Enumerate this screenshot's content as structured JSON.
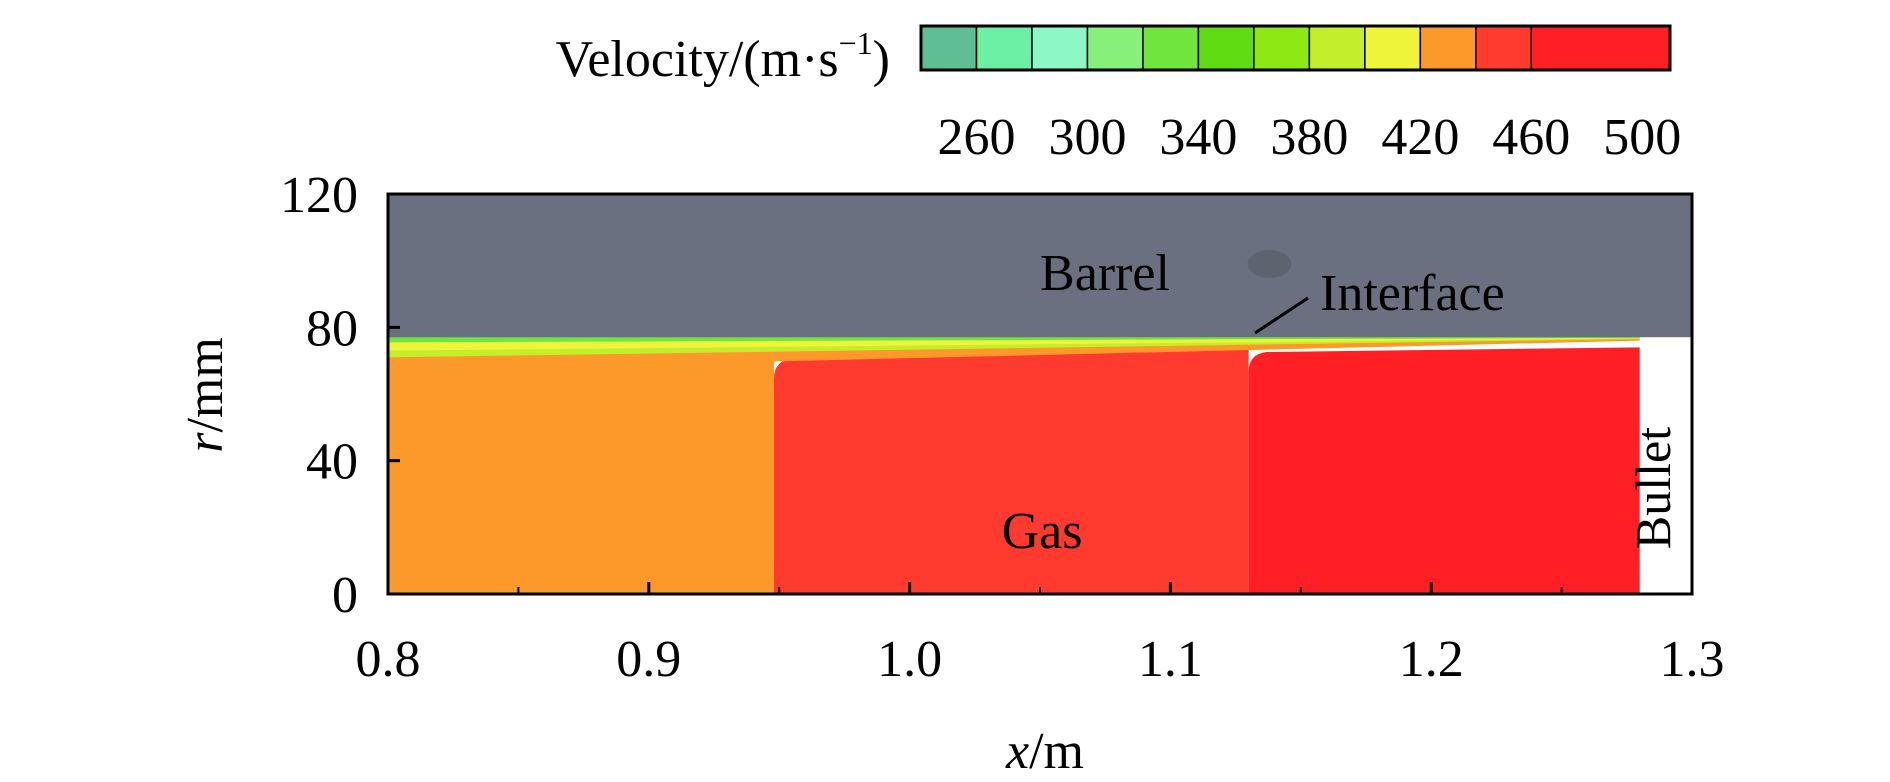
{
  "chart_data": {
    "type": "heatmap",
    "colorbar": {
      "label_main": "Velocity/(m·s",
      "label_sup": "−1",
      "label_close": ")",
      "tick_labels": [
        "260",
        "300",
        "340",
        "380",
        "420",
        "460",
        "500"
      ],
      "ticks": [
        260,
        300,
        340,
        380,
        420,
        460,
        500
      ],
      "range": [
        240,
        510
      ],
      "bins": [
        {
          "lo": 240,
          "hi": 260,
          "color": "#5fbe93"
        },
        {
          "lo": 260,
          "hi": 280,
          "color": "#6bf0a6"
        },
        {
          "lo": 280,
          "hi": 300,
          "color": "#8cf8c5"
        },
        {
          "lo": 300,
          "hi": 320,
          "color": "#86f07a"
        },
        {
          "lo": 320,
          "hi": 340,
          "color": "#6fe53d"
        },
        {
          "lo": 340,
          "hi": 360,
          "color": "#5fdc12"
        },
        {
          "lo": 360,
          "hi": 380,
          "color": "#8ee814"
        },
        {
          "lo": 380,
          "hi": 400,
          "color": "#c2ee2c"
        },
        {
          "lo": 400,
          "hi": 420,
          "color": "#eef43a"
        },
        {
          "lo": 420,
          "hi": 440,
          "color": "#fb9a2a"
        },
        {
          "lo": 440,
          "hi": 460,
          "color": "#ff3a2f"
        },
        {
          "lo": 460,
          "hi": 510,
          "color": "#ff1f24"
        }
      ]
    },
    "x_axis": {
      "label_var": "x",
      "label_unit": "/m",
      "range": [
        0.8,
        1.3
      ],
      "ticks": [
        0.8,
        0.9,
        1.0,
        1.1,
        1.2,
        1.3
      ],
      "tick_labels": [
        "0.8",
        "0.9",
        "1.0",
        "1.1",
        "1.2",
        "1.3"
      ]
    },
    "y_axis": {
      "label_var": "r",
      "label_unit": "/mm",
      "range": [
        0,
        120
      ],
      "ticks": [
        0,
        40,
        80,
        120
      ],
      "tick_labels": [
        "0",
        "40",
        "80",
        "120"
      ]
    },
    "regions": {
      "barrel": {
        "r_min": 77,
        "r_max": 120,
        "color": "#6b7080"
      },
      "bullet_x": 1.28,
      "bore_radius": 77
    },
    "velocity_zones": [
      {
        "x_start": 0.8,
        "x_end": 0.948,
        "velocity": 430,
        "color": "#fb9a2a"
      },
      {
        "x_start": 0.948,
        "x_end": 1.13,
        "velocity": 450,
        "color": "#ff3a2f"
      },
      {
        "x_start": 1.13,
        "x_end": 1.28,
        "velocity": 470,
        "color": "#ff1f24"
      }
    ],
    "annotations": {
      "barrel": "Barrel",
      "interface": "Interface",
      "gas": "Gas",
      "bullet": "Bullet"
    }
  }
}
